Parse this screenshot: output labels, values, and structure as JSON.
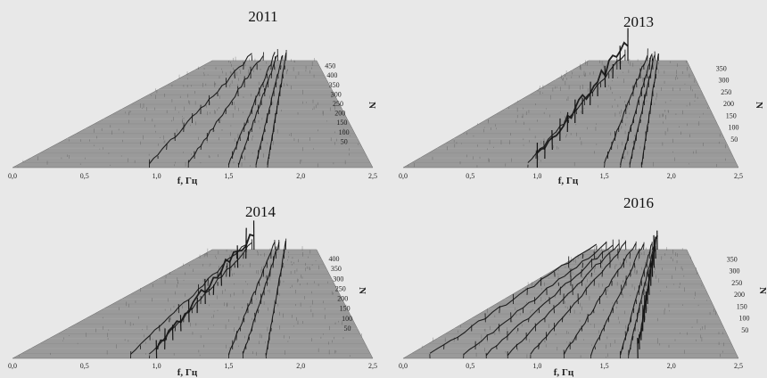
{
  "figure": {
    "background": "#e8e8e8"
  },
  "chart_data": [
    {
      "type": "area",
      "title": "2011",
      "xlabel": "f, Гц",
      "zlabel": "N",
      "xlim": [
        0.0,
        2.5
      ],
      "zlim": [
        0,
        450
      ],
      "x_ticks": [
        "0,0",
        "0,5",
        "1,0",
        "1,5",
        "2,0",
        "2,5"
      ],
      "z_ticks": [
        "50",
        "100",
        "150",
        "200",
        "250",
        "300",
        "350",
        "400",
        "450"
      ],
      "peaks_hz": [
        0.95,
        1.22,
        1.5,
        1.57,
        1.69,
        1.77
      ],
      "tallest_peak_hz": 0.98
    },
    {
      "type": "area",
      "title": "2013",
      "xlabel": "f, Гц",
      "zlabel": "N",
      "xlim": [
        0.0,
        2.5
      ],
      "zlim": [
        0,
        350
      ],
      "x_ticks": [
        "0,0",
        "0,5",
        "1,0",
        "1,5",
        "2,0",
        "2,5"
      ],
      "z_ticks": [
        "50",
        "100",
        "150",
        "200",
        "250",
        "300",
        "350"
      ],
      "peaks_hz": [
        0.93,
        1.0,
        1.5,
        1.62,
        1.69,
        1.78
      ],
      "tallest_peak_hz": 1.0
    },
    {
      "type": "area",
      "title": "2014",
      "xlabel": "f, Гц",
      "zlabel": "N",
      "xlim": [
        0.0,
        2.5
      ],
      "zlim": [
        0,
        400
      ],
      "x_ticks": [
        "0,0",
        "0,5",
        "1,0",
        "1,5",
        "2,0",
        "2,5"
      ],
      "z_ticks": [
        "50",
        "100",
        "150",
        "200",
        "250",
        "300",
        "350",
        "400"
      ],
      "peaks_hz": [
        0.82,
        0.95,
        1.0,
        1.5,
        1.6,
        1.76
      ],
      "tallest_peak_hz": 1.0
    },
    {
      "type": "area",
      "title": "2016",
      "xlabel": "f, Гц",
      "zlabel": "N",
      "xlim": [
        0.0,
        2.5
      ],
      "zlim": [
        0,
        350
      ],
      "x_ticks": [
        "0,0",
        "0,5",
        "1,0",
        "1,5",
        "2,0",
        "2,5"
      ],
      "z_ticks": [
        "50",
        "100",
        "150",
        "200",
        "250",
        "300",
        "350"
      ],
      "peaks_hz": [
        0.2,
        0.45,
        0.62,
        0.78,
        0.95,
        1.2,
        1.4,
        1.62,
        1.68,
        1.75
      ],
      "tallest_peak_hz": 1.75
    }
  ]
}
